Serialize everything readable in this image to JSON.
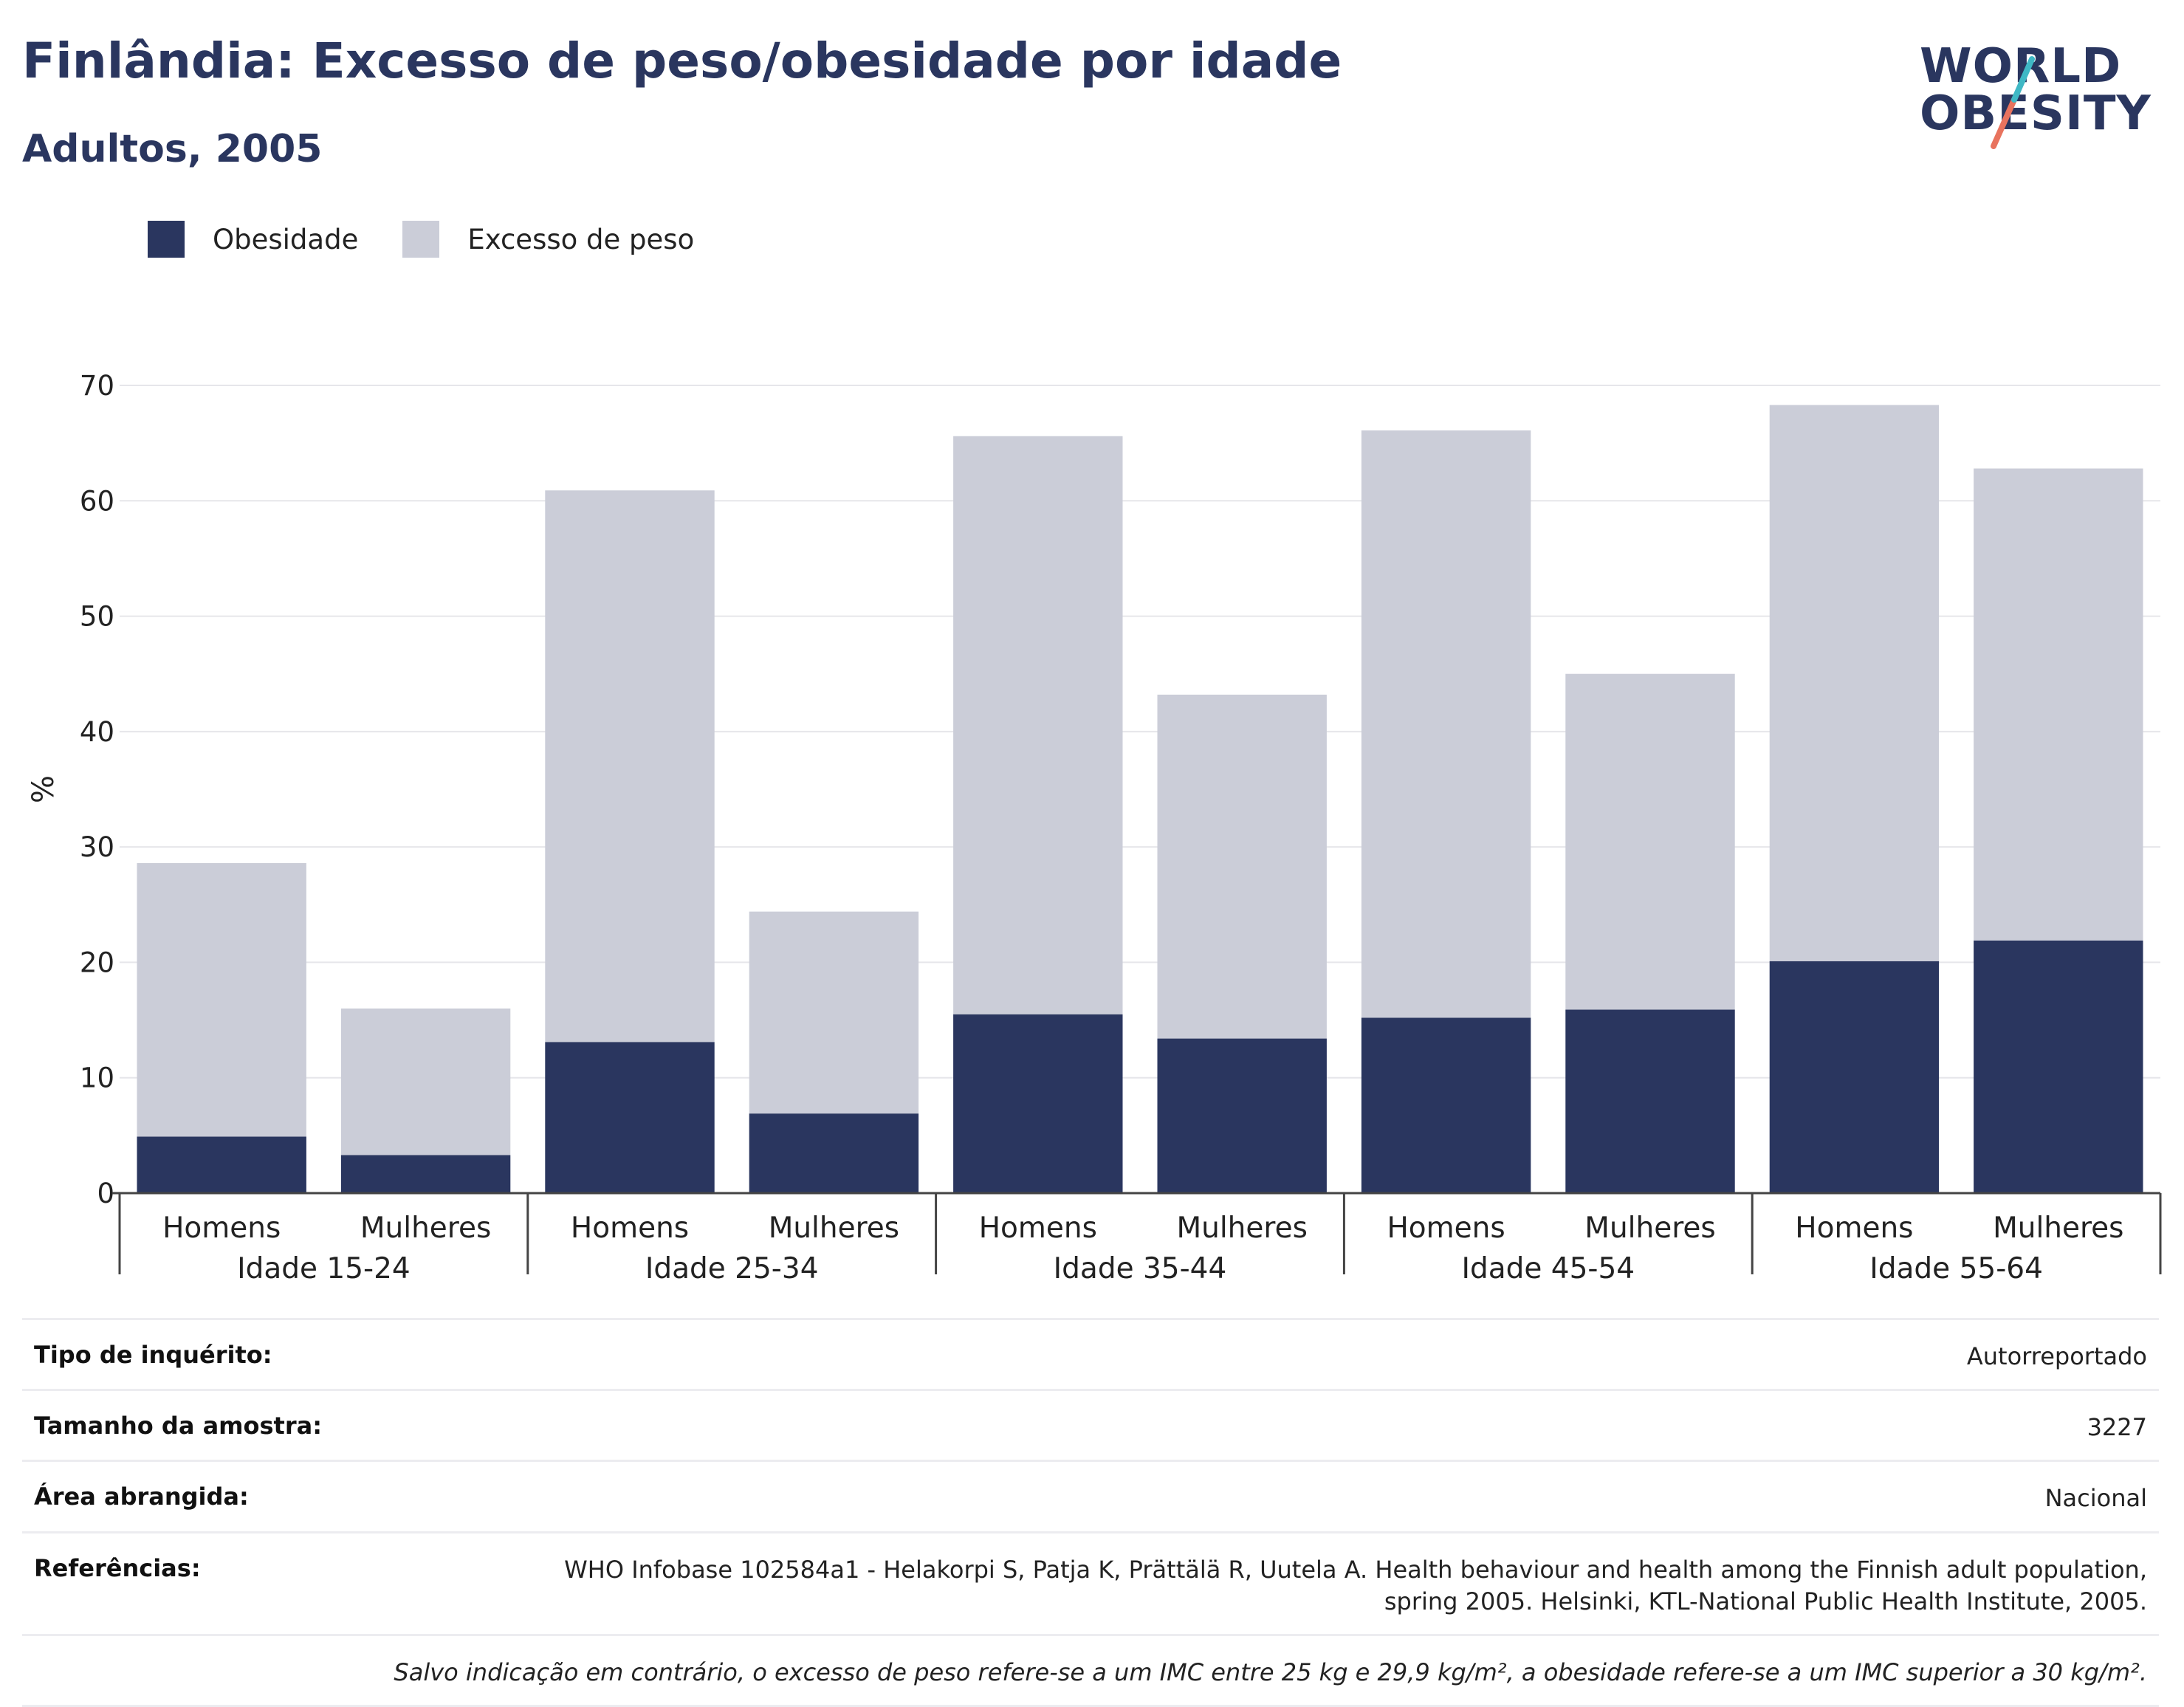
{
  "header": {
    "title": "Finlândia: Excesso de peso/obesidade por idade",
    "subtitle": "Adultos, 2005"
  },
  "logo": {
    "line1": "WORLD",
    "line2": "OBESITY",
    "color_navy": "#2a365f",
    "color_teal": "#3fb8c5",
    "color_coral": "#e8735e"
  },
  "legend": [
    {
      "label": "Obesidade",
      "color": "#2a365f"
    },
    {
      "label": "Excesso de peso",
      "color": "#cbcdd8"
    }
  ],
  "chart_data": {
    "type": "bar",
    "stacked": true,
    "ylabel": "%",
    "ylim": [
      0,
      70
    ],
    "yticks": [
      0,
      10,
      20,
      30,
      40,
      50,
      60,
      70
    ],
    "grid": true,
    "groups": [
      "Idade 15-24",
      "Idade 25-34",
      "Idade 35-44",
      "Idade 45-54",
      "Idade 55-64"
    ],
    "categories": [
      "Homens",
      "Mulheres",
      "Homens",
      "Mulheres",
      "Homens",
      "Mulheres",
      "Homens",
      "Mulheres",
      "Homens",
      "Mulheres"
    ],
    "series": [
      {
        "name": "Obesidade",
        "color": "#2a365f",
        "values": [
          4.9,
          3.3,
          13.1,
          6.9,
          15.5,
          13.4,
          15.2,
          15.9,
          20.1,
          21.9
        ]
      },
      {
        "name": "Excesso de peso",
        "color": "#cbcdd8",
        "values": [
          23.7,
          12.7,
          47.8,
          17.5,
          50.1,
          29.8,
          50.9,
          29.1,
          48.2,
          40.9
        ]
      }
    ]
  },
  "info": {
    "rows": [
      {
        "key": "Tipo de inquérito:",
        "value": "Autorreportado"
      },
      {
        "key": "Tamanho da amostra:",
        "value": "3227"
      },
      {
        "key": "Área abrangida:",
        "value": "Nacional"
      },
      {
        "key": "Referências:",
        "value_line1": "WHO Infobase 102584a1 - Helakorpi S, Patja K, Prättälä R, Uutela A. Health behaviour and health among the Finnish adult population,",
        "value_line2": "spring 2005. Helsinki, KTL-National Public Health Institute, 2005."
      }
    ],
    "note": "Salvo indicação em contrário, o excesso de peso refere-se a um IMC entre 25 kg e 29,9 kg/m², a obesidade refere-se a um IMC superior a 30 kg/m²."
  }
}
